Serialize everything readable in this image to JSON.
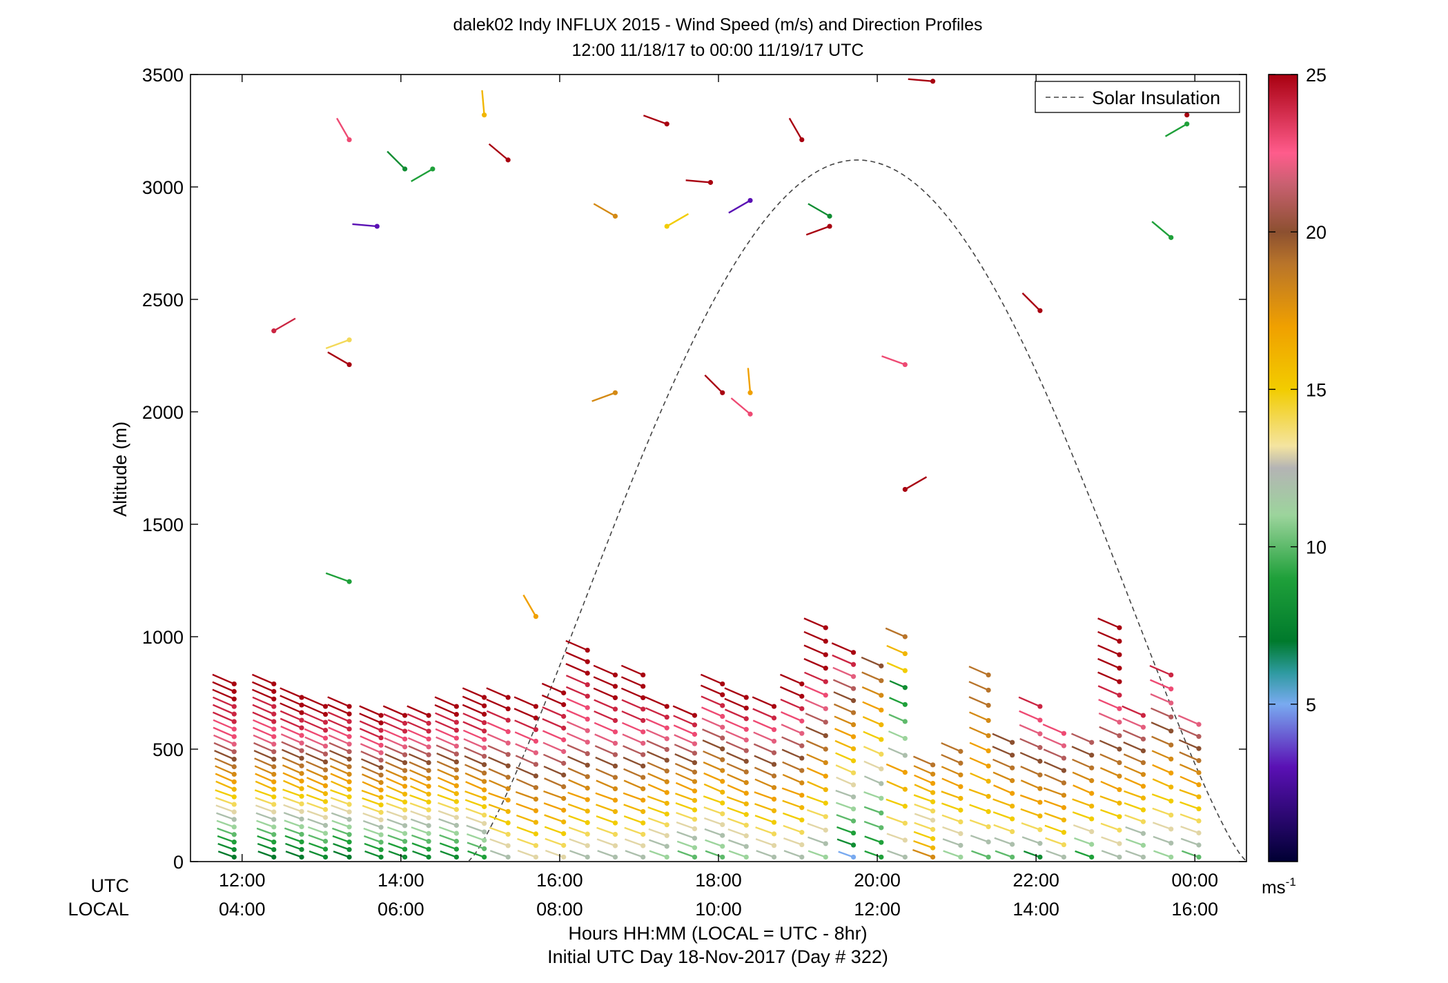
{
  "chart_data": {
    "type": "wind-barb-profile",
    "title": "dalek02 Indy INFLUX 2015 - Wind Speed (m/s) and Direction Profiles",
    "subtitle": "12:00 11/18/17 to 00:00 11/19/17  UTC",
    "ylabel": "Altitude (m)",
    "xlabel": "Hours HH:MM  (LOCAL = UTC - 8hr)",
    "xlabel2": "Initial UTC Day 18-Nov-2017 (Day # 322)",
    "row_label_utc": "UTC",
    "row_label_local": "LOCAL",
    "x_range_hours": [
      11.35,
      24.65
    ],
    "ylim": [
      0,
      3500
    ],
    "y_ticks": [
      0,
      500,
      1000,
      1500,
      2000,
      2500,
      3000,
      3500
    ],
    "x_ticks": [
      {
        "hour": 12,
        "utc": "12:00",
        "local": "04:00"
      },
      {
        "hour": 14,
        "utc": "14:00",
        "local": "06:00"
      },
      {
        "hour": 16,
        "utc": "16:00",
        "local": "08:00"
      },
      {
        "hour": 18,
        "utc": "18:00",
        "local": "10:00"
      },
      {
        "hour": 20,
        "utc": "20:00",
        "local": "12:00"
      },
      {
        "hour": 22,
        "utc": "22:00",
        "local": "14:00"
      },
      {
        "hour": 24,
        "utc": "00:00",
        "local": "16:00"
      }
    ],
    "legend": {
      "entry": "Solar Insulation",
      "style": "dashed",
      "placement": "top-right"
    },
    "solar_insolation": {
      "start_hour": 14.85,
      "peak_hour": 19.75,
      "end_hour": 24.65,
      "peak_altitude": 3120
    },
    "colorbar": {
      "ticks": [
        5,
        10,
        15,
        20,
        25
      ],
      "range": [
        0,
        25
      ],
      "unit_base": "ms",
      "unit_exp": "-1",
      "stops": [
        {
          "v": 0,
          "c": "#000033"
        },
        {
          "v": 3,
          "c": "#5a10b4"
        },
        {
          "v": 5,
          "c": "#79aaf0"
        },
        {
          "v": 6,
          "c": "#2e9aa0"
        },
        {
          "v": 7,
          "c": "#007a2c"
        },
        {
          "v": 9,
          "c": "#1fa03a"
        },
        {
          "v": 11,
          "c": "#9cd49c"
        },
        {
          "v": 12.5,
          "c": "#b4b4b4"
        },
        {
          "v": 13.2,
          "c": "#f4e4a0"
        },
        {
          "v": 15,
          "c": "#f2cc00"
        },
        {
          "v": 17,
          "c": "#f0a000"
        },
        {
          "v": 19,
          "c": "#b8742a"
        },
        {
          "v": 20,
          "c": "#8c5030"
        },
        {
          "v": 21.5,
          "c": "#c86070"
        },
        {
          "v": 22.5,
          "c": "#ff5c8c"
        },
        {
          "v": 25,
          "c": "#a80010"
        }
      ]
    },
    "profiles": [
      {
        "hour": 11.9,
        "top": 790,
        "speeds": [
          7,
          8,
          9,
          10,
          11,
          12,
          13,
          14,
          15,
          16,
          17,
          18,
          19,
          20,
          21,
          22,
          23,
          23,
          24,
          24,
          24,
          25,
          25,
          25
        ]
      },
      {
        "hour": 12.4,
        "top": 790,
        "speeds": [
          7,
          8,
          9,
          10,
          11,
          12,
          13,
          14,
          15,
          16,
          17,
          18,
          19,
          20,
          21,
          22,
          23,
          23,
          24,
          24,
          24,
          25,
          25,
          25
        ]
      },
      {
        "hour": 12.75,
        "top": 730,
        "speeds": [
          7,
          8,
          9,
          10,
          11,
          12,
          13,
          14,
          15,
          16,
          17,
          18,
          19,
          20,
          21,
          22,
          23,
          24,
          24,
          25,
          25,
          25
        ]
      },
      {
        "hour": 13.05,
        "top": 690,
        "speeds": [
          8,
          9,
          10,
          11,
          12,
          13,
          14,
          15,
          16,
          17,
          18,
          19,
          20,
          21,
          22,
          23,
          24,
          24,
          25,
          25
        ]
      },
      {
        "hour": 13.35,
        "top": 690,
        "speeds": [
          7,
          8,
          9,
          10,
          11,
          12,
          13,
          14,
          15,
          16,
          17,
          18,
          19,
          20,
          21,
          22,
          23,
          24,
          24,
          25,
          25
        ]
      },
      {
        "hour": 13.75,
        "top": 650,
        "speeds": [
          8,
          9,
          10,
          11,
          12,
          13,
          14,
          15,
          16,
          17,
          18,
          19,
          20,
          21,
          22,
          23,
          24,
          24,
          25,
          25
        ]
      },
      {
        "hour": 14.05,
        "top": 650,
        "speeds": [
          8,
          9,
          10,
          11,
          12,
          13,
          14,
          15,
          16,
          17,
          18,
          19,
          20,
          21,
          22,
          23,
          24,
          24,
          25
        ]
      },
      {
        "hour": 14.35,
        "top": 650,
        "speeds": [
          8,
          9,
          10,
          11,
          12,
          13,
          14,
          15,
          16,
          17,
          18,
          19,
          20,
          21,
          22,
          23,
          24,
          24,
          25
        ]
      },
      {
        "hour": 14.7,
        "top": 690,
        "speeds": [
          8,
          9,
          10,
          11,
          12,
          13,
          14,
          15,
          16,
          17,
          18,
          19,
          20,
          21,
          22,
          23,
          24,
          24,
          25,
          25
        ]
      },
      {
        "hour": 15.05,
        "top": 730,
        "speeds": [
          9,
          10,
          11,
          12,
          13,
          14,
          15,
          16,
          17,
          18,
          19,
          20,
          21,
          22,
          23,
          24,
          24,
          25,
          25,
          25
        ]
      },
      {
        "hour": 15.35,
        "top": 730,
        "speeds": [
          12,
          13,
          14,
          15,
          16,
          17,
          18,
          19,
          20,
          21,
          22,
          23,
          24,
          25,
          25
        ]
      },
      {
        "hour": 15.7,
        "top": 690,
        "speeds": [
          13,
          14,
          15,
          16,
          17,
          18,
          19,
          20,
          21,
          22,
          23,
          24,
          25,
          25
        ]
      },
      {
        "hour": 16.05,
        "top": 750,
        "speeds": [
          13,
          14,
          15,
          16,
          17,
          18,
          19,
          20,
          21,
          22,
          23,
          24,
          24,
          25,
          25
        ]
      },
      {
        "hour": 16.35,
        "top": 940,
        "speeds": [
          12,
          13,
          14,
          15,
          16,
          17,
          18,
          19,
          20,
          21,
          22,
          22,
          23,
          23,
          24,
          24,
          25,
          25,
          25
        ]
      },
      {
        "hour": 16.7,
        "top": 830,
        "speeds": [
          12,
          13,
          14,
          15,
          16,
          17,
          18,
          19,
          20,
          21,
          22,
          23,
          24,
          24,
          25,
          25,
          25
        ]
      },
      {
        "hour": 17.05,
        "top": 830,
        "speeds": [
          12,
          13,
          14,
          15,
          16,
          17,
          18,
          19,
          20,
          21,
          22,
          23,
          24,
          24,
          25,
          25,
          25
        ]
      },
      {
        "hour": 17.35,
        "top": 690,
        "speeds": [
          11,
          12,
          13,
          14,
          15,
          16,
          17,
          18,
          19,
          20,
          21,
          22,
          23,
          24,
          25
        ]
      },
      {
        "hour": 17.7,
        "top": 650,
        "speeds": [
          10,
          11,
          12,
          13,
          14,
          15,
          16,
          17,
          18,
          19,
          20,
          21,
          22,
          23,
          24,
          25
        ]
      },
      {
        "hour": 18.05,
        "top": 790,
        "speeds": [
          10,
          11,
          12,
          13,
          14,
          15,
          16,
          17,
          18,
          19,
          20,
          21,
          22,
          23,
          24,
          25,
          25
        ]
      },
      {
        "hour": 18.35,
        "top": 730,
        "speeds": [
          11,
          12,
          13,
          14,
          15,
          16,
          17,
          18,
          19,
          20,
          21,
          22,
          23,
          24,
          25,
          25
        ]
      },
      {
        "hour": 18.7,
        "top": 690,
        "speeds": [
          12,
          13,
          14,
          15,
          16,
          17,
          18,
          19,
          20,
          21,
          22,
          23,
          24,
          25
        ]
      },
      {
        "hour": 19.05,
        "top": 790,
        "speeds": [
          12,
          13,
          14,
          15,
          16,
          17,
          18,
          19,
          20,
          21,
          22,
          23,
          24,
          25,
          25
        ]
      },
      {
        "hour": 19.35,
        "top": 1040,
        "speeds": [
          11,
          12,
          13,
          14,
          15,
          16,
          17,
          18,
          19,
          20,
          21,
          22,
          23,
          24,
          25,
          25,
          25,
          25
        ]
      },
      {
        "hour": 19.7,
        "top": 930,
        "speeds": [
          5,
          8,
          9,
          10,
          11,
          12,
          13,
          14,
          15,
          16,
          17,
          18,
          19,
          20,
          21,
          22,
          24,
          25
        ]
      },
      {
        "hour": 20.05,
        "top": 870,
        "speeds": [
          9,
          9,
          10,
          10,
          11,
          12,
          13,
          14,
          15,
          16,
          17,
          18,
          19,
          20
        ]
      },
      {
        "hour": 20.35,
        "top": 1000,
        "speeds": [
          12,
          13,
          14,
          15,
          16,
          17,
          12,
          11,
          10,
          9,
          8,
          15,
          16,
          19
        ]
      },
      {
        "hour": 20.7,
        "top": 430,
        "speeds": [
          18,
          16,
          15,
          14,
          13,
          14,
          15,
          16,
          17,
          18,
          19
        ]
      },
      {
        "hour": 21.05,
        "top": 490,
        "speeds": [
          11,
          12,
          13,
          14,
          15,
          16,
          17,
          18,
          19,
          19
        ]
      },
      {
        "hour": 21.4,
        "top": 830,
        "speeds": [
          10,
          12,
          14,
          15,
          16,
          16,
          17,
          17,
          18,
          18,
          19,
          19,
          19
        ]
      },
      {
        "hour": 21.7,
        "top": 530,
        "speeds": [
          10,
          12,
          14,
          15,
          16,
          17,
          18,
          19,
          20,
          20
        ]
      },
      {
        "hour": 22.05,
        "top": 690,
        "speeds": [
          8,
          12,
          14,
          16,
          17,
          18,
          19,
          20,
          21,
          22,
          23,
          24
        ]
      },
      {
        "hour": 22.35,
        "top": 570,
        "speeds": [
          12,
          14,
          15,
          16,
          17,
          18,
          19,
          20,
          21,
          22,
          23
        ]
      },
      {
        "hour": 22.7,
        "top": 530,
        "speeds": [
          9,
          11,
          13,
          15,
          16,
          17,
          18,
          19,
          20,
          21
        ]
      },
      {
        "hour": 23.05,
        "top": 1040,
        "speeds": [
          12,
          13,
          14,
          15,
          16,
          17,
          18,
          19,
          20,
          21,
          22,
          23,
          24,
          25,
          25,
          25,
          25,
          25
        ]
      },
      {
        "hour": 23.35,
        "top": 650,
        "speeds": [
          12,
          11,
          12,
          14,
          15,
          16,
          17,
          18,
          19,
          20,
          21,
          22,
          24
        ]
      },
      {
        "hour": 23.7,
        "top": 830,
        "speeds": [
          11,
          12,
          13,
          14,
          15,
          16,
          17,
          18,
          19,
          20,
          21,
          22,
          23,
          24
        ]
      },
      {
        "hour": 24.05,
        "top": 610,
        "speeds": [
          10,
          12,
          13,
          14,
          15,
          16,
          17,
          18,
          19,
          20,
          21,
          22
        ]
      }
    ],
    "isolated_barbs": [
      {
        "hour": 13.35,
        "alt": 3210,
        "speed": 23
      },
      {
        "hour": 13.35,
        "alt": 2210,
        "speed": 25
      },
      {
        "hour": 13.35,
        "alt": 2320,
        "speed": 14
      },
      {
        "hour": 13.35,
        "alt": 1245,
        "speed": 9
      },
      {
        "hour": 12.4,
        "alt": 2360,
        "speed": 24
      },
      {
        "hour": 13.7,
        "alt": 2825,
        "speed": 3
      },
      {
        "hour": 14.05,
        "alt": 3080,
        "speed": 8
      },
      {
        "hour": 14.4,
        "alt": 3080,
        "speed": 9
      },
      {
        "hour": 15.05,
        "alt": 3320,
        "speed": 16
      },
      {
        "hour": 15.35,
        "alt": 3120,
        "speed": 25
      },
      {
        "hour": 15.7,
        "alt": 1090,
        "speed": 17
      },
      {
        "hour": 16.7,
        "alt": 2870,
        "speed": 18
      },
      {
        "hour": 16.7,
        "alt": 2085,
        "speed": 18
      },
      {
        "hour": 17.35,
        "alt": 3280,
        "speed": 25
      },
      {
        "hour": 17.35,
        "alt": 2825,
        "speed": 15
      },
      {
        "hour": 17.9,
        "alt": 3020,
        "speed": 25
      },
      {
        "hour": 18.05,
        "alt": 2085,
        "speed": 25
      },
      {
        "hour": 18.4,
        "alt": 2940,
        "speed": 3
      },
      {
        "hour": 18.4,
        "alt": 2085,
        "speed": 17
      },
      {
        "hour": 18.4,
        "alt": 1990,
        "speed": 23
      },
      {
        "hour": 19.05,
        "alt": 3210,
        "speed": 25
      },
      {
        "hour": 19.4,
        "alt": 2870,
        "speed": 8
      },
      {
        "hour": 19.4,
        "alt": 2825,
        "speed": 25
      },
      {
        "hour": 20.35,
        "alt": 2210,
        "speed": 23
      },
      {
        "hour": 20.35,
        "alt": 1655,
        "speed": 25
      },
      {
        "hour": 20.7,
        "alt": 3470,
        "speed": 25
      },
      {
        "hour": 22.05,
        "alt": 2450,
        "speed": 25
      },
      {
        "hour": 23.9,
        "alt": 3280,
        "speed": 9
      },
      {
        "hour": 23.9,
        "alt": 3320,
        "speed": 25
      },
      {
        "hour": 23.7,
        "alt": 2775,
        "speed": 9
      }
    ]
  }
}
